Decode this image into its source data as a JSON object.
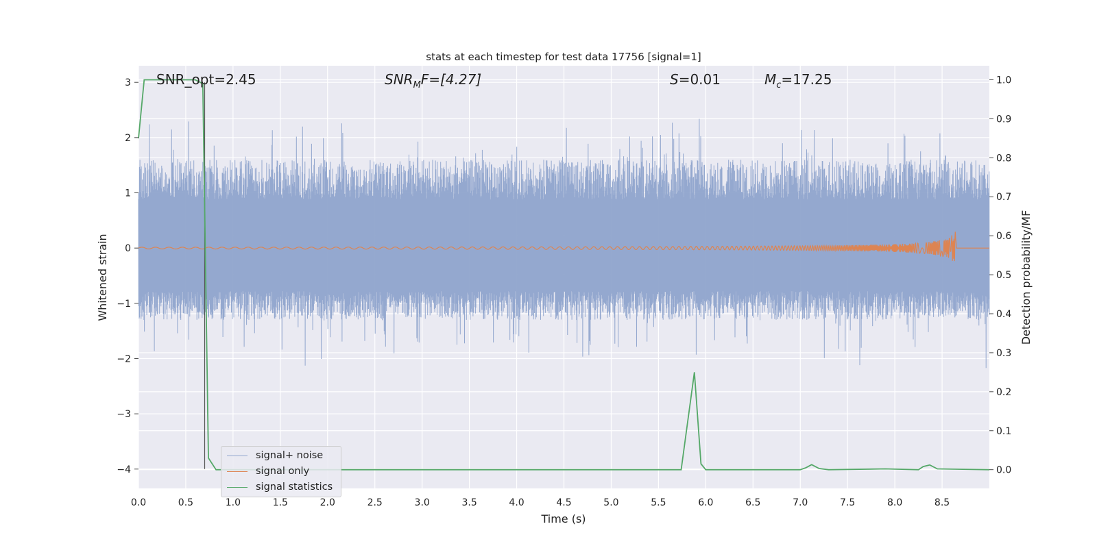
{
  "chart_data": {
    "type": "line",
    "title": "stats at each timestep for test data 17756 [signal=1]",
    "xlabel": "Time (s)",
    "ylabel_left": "Whitened strain",
    "ylabel_right": "Detection probability/MF",
    "xlim": [
      0,
      9
    ],
    "ylim_left": [
      -4.35,
      3.3
    ],
    "ylim_right": [
      -0.048,
      1.036
    ],
    "x_ticks": [
      "0.0",
      "0.5",
      "1.0",
      "1.5",
      "2.0",
      "2.5",
      "3.0",
      "3.5",
      "4.0",
      "4.5",
      "5.0",
      "5.5",
      "6.0",
      "6.5",
      "7.0",
      "7.5",
      "8.0",
      "8.5"
    ],
    "y_left_ticks": [
      "3",
      "2",
      "1",
      "0",
      "−1",
      "−2",
      "−3",
      "−4"
    ],
    "y_right_ticks": [
      "1.0",
      "0.9",
      "0.8",
      "0.7",
      "0.6",
      "0.5",
      "0.4",
      "0.3",
      "0.2",
      "0.1",
      "0.0"
    ],
    "grid": true,
    "legend_position": "lower-left",
    "annotations": {
      "snr_opt": "SNR_opt=2.45",
      "snr_mf_base": "SNR",
      "snr_mf_sub": "M",
      "snr_mf_rest": "F=[4.27]",
      "s_label": "S",
      "s_value": "=0.01",
      "mc_base": "M",
      "mc_sub": "c",
      "mc_value": "=17.25"
    },
    "vline_x": 0.7,
    "series": [
      {
        "name": "signal+ noise",
        "color": "#8fa4cc",
        "axis": "left",
        "approx_envelope": [
          -1.3,
          1.6
        ]
      },
      {
        "name": "signal only",
        "color": "#dd8452",
        "axis": "left",
        "chirp_peak_time": 8.65,
        "chirp_peak_amplitude": 0.35
      },
      {
        "name": "signal statistics",
        "color": "#55a868",
        "axis": "right",
        "x": [
          0.0,
          0.06,
          0.12,
          0.6,
          0.68,
          0.74,
          0.82,
          5.5,
          5.74,
          5.88,
          5.95,
          6.0,
          7.0,
          7.06,
          7.12,
          7.2,
          7.3,
          7.9,
          8.25,
          8.3,
          8.37,
          8.45,
          9.0
        ],
        "y": [
          0.85,
          1.0,
          1.0,
          1.0,
          0.99,
          0.03,
          0.0,
          0.0,
          0.0,
          0.25,
          0.015,
          0.0,
          0.0,
          0.005,
          0.013,
          0.003,
          0.0,
          0.002,
          0.0,
          0.008,
          0.012,
          0.002,
          0.0
        ]
      }
    ]
  },
  "colors": {
    "axes_background": "#eaeaf2",
    "grid": "#ffffff",
    "noise": "#8fa4cc",
    "signal": "#dd8452",
    "stat": "#55a868"
  }
}
